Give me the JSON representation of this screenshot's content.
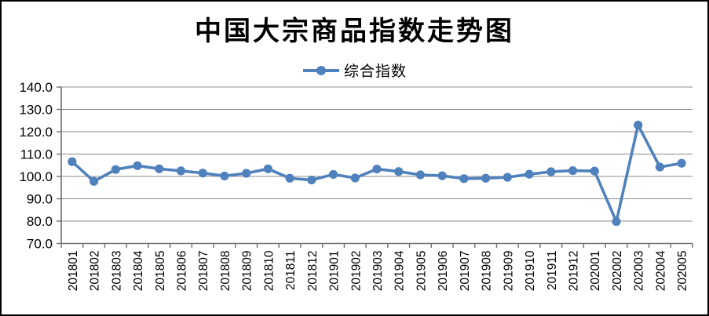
{
  "window": {
    "background_color": "#ffffff",
    "border_color": "#000000"
  },
  "chart_data": {
    "type": "line",
    "title": "中国大宗商品指数走势图",
    "legend_position": "top",
    "categories": [
      "201801",
      "201802",
      "201803",
      "201804",
      "201805",
      "201806",
      "201807",
      "201808",
      "201809",
      "201810",
      "201811",
      "201812",
      "201901",
      "201902",
      "201903",
      "201904",
      "201905",
      "201906",
      "201907",
      "201908",
      "201909",
      "201910",
      "201911",
      "201912",
      "202001",
      "202002",
      "202003",
      "202004",
      "202005"
    ],
    "series": [
      {
        "name": "综合指数",
        "color": "#4F81BD",
        "values": [
          106.6,
          97.8,
          103.1,
          104.8,
          103.4,
          102.5,
          101.5,
          100.2,
          101.4,
          103.4,
          99.2,
          98.4,
          100.9,
          99.3,
          103.3,
          102.2,
          100.7,
          100.3,
          99.0,
          99.2,
          99.6,
          101.0,
          102.1,
          102.6,
          102.4,
          79.8,
          123.0,
          104.2,
          105.9
        ]
      }
    ],
    "ylim": [
      70,
      140
    ],
    "ytick_step": 10,
    "ytick_decimals": 1,
    "grid": true,
    "gridline_color": "#8c8c8c",
    "axis_color": "#707070",
    "tick_label_color": "#000000",
    "ytick_labels": [
      "70.0",
      "80.0",
      "90.0",
      "100.0",
      "110.0",
      "120.0",
      "130.0",
      "140.0"
    ],
    "x_label_rotation_deg": -90
  }
}
